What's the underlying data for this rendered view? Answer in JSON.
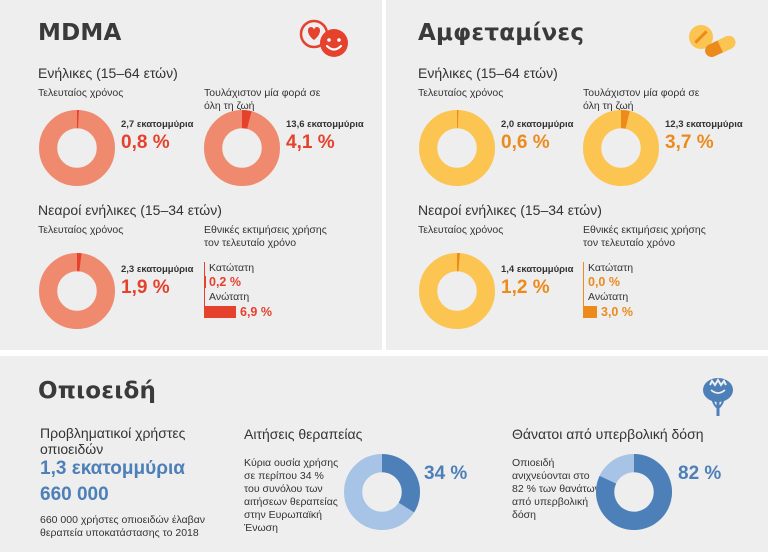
{
  "colors": {
    "mdma_ring": "#ef8a6f",
    "mdma_slice": "#e5412d",
    "amph_ring": "#fcc451",
    "amph_slice": "#ec8a1c",
    "opi_ring": "#a7c4e6",
    "opi_slice": "#4d7fb8",
    "panel_bg": "#eeeeee"
  },
  "mdma": {
    "title": "MDMA",
    "icon": "smiley-hearts-icon",
    "adults_heading": "Ενήλικες (15–64 ετών)",
    "young_heading": "Νεαροί ενήλικες (15–34 ετών)",
    "last_year_label": "Τελευταίος χρόνος",
    "lifetime_label": "Τουλάχιστον μία φορά σε όλη τη ζωή",
    "national_label": "Εθνικές εκτιμήσεις χρήσης τον τελευταίο χρόνο",
    "adults_last_year": {
      "millions": "2,7 εκατομμύρια",
      "percent": "0,8 %",
      "value": 0.8
    },
    "adults_lifetime": {
      "millions": "13,6 εκατομμύρια",
      "percent": "4,1 %",
      "value": 4.1
    },
    "young_last_year": {
      "millions": "2,3 εκατομμύρια",
      "percent": "1,9 %",
      "value": 1.9
    },
    "range": {
      "low_label": "Κατώτατη",
      "low": "0,2 %",
      "low_value": 0.2,
      "high_label": "Ανώτατη",
      "high": "6,9 %",
      "high_value": 6.9
    }
  },
  "amph": {
    "title": "Αμφεταμίνες",
    "icon": "pill-icon",
    "adults_heading": "Ενήλικες (15–64 ετών)",
    "young_heading": "Νεαροί ενήλικες (15–34 ετών)",
    "last_year_label": "Τελευταίος χρόνος",
    "lifetime_label": "Τουλάχιστον μία φορά σε όλη τη ζωή",
    "national_label": "Εθνικές εκτιμήσεις χρήσης τον τελευταίο χρόνο",
    "adults_last_year": {
      "millions": "2,0 εκατομμύρια",
      "percent": "0,6 %",
      "value": 0.6
    },
    "adults_lifetime": {
      "millions": "12,3 εκατομμύρια",
      "percent": "3,7 %",
      "value": 3.7
    },
    "young_last_year": {
      "millions": "1,4 εκατομμύρια",
      "percent": "1,2 %",
      "value": 1.2
    },
    "range": {
      "low_label": "Κατώτατη",
      "low": "0,0 %",
      "low_value": 0.0,
      "high_label": "Ανώτατη",
      "high": "3,0 %",
      "high_value": 3.0
    }
  },
  "opioids": {
    "title": "Οπιοειδή",
    "icon": "poppy-icon",
    "problem_users_label": "Προβληματικοί χρήστες οπιοειδών",
    "problem_users": "1,3 εκατομμύρια",
    "treated": "660 000",
    "treated_note": "660 000 χρήστες οπιοειδών έλαβαν θεραπεία υποκατάστασης το 2018",
    "treatment_heading": "Αιτήσεις θεραπείας",
    "treatment_text": "Κύρια ουσία χρήσης σε περίπου 34 % του συνόλου των αιτήσεων θεραπείας στην Ευρωπαϊκή Ένωση",
    "treatment_percent": "34 %",
    "treatment_value": 34,
    "deaths_heading": "Θάνατοι από υπερβολική δόση",
    "deaths_text": "Οπιοειδή ανιχνεύονται στο 82 % των θανάτων από υπερβολική δόση",
    "deaths_percent": "82 %",
    "deaths_value": 82
  },
  "chart_data": [
    {
      "type": "pie",
      "title": "MDMA",
      "series": [
        {
          "name": "Ενήλικες (15–64 ετών) — Τελευταίος χρόνος",
          "values": [
            0.8
          ]
        },
        {
          "name": "Ενήλικες (15–64 ετών) — Τουλάχιστον μία φορά σε όλη τη ζωή",
          "values": [
            4.1
          ]
        },
        {
          "name": "Νεαροί ενήλικες (15–34 ετών) — Τελευταίος χρόνος",
          "values": [
            1.9
          ]
        }
      ]
    },
    {
      "type": "bar",
      "title": "",
      "categories": [
        "Κατώτατη",
        "Ανώτατη"
      ],
      "values": [
        0.2,
        6.9
      ]
    },
    {
      "type": "pie",
      "title": "Αμφεταμίνες",
      "series": [
        {
          "name": "Ενήλικες (15–64 ετών) — Τελευταίος χρόνος",
          "values": [
            0.6
          ]
        },
        {
          "name": "Ενήλικες (15–64 ετών) — Τουλάχιστον μία φορά σε όλη τη ζωή",
          "values": [
            3.7
          ]
        },
        {
          "name": "Νεαροί ενήλικες (15–34 ετών) — Τελευταίος χρόνος",
          "values": [
            1.2
          ]
        }
      ]
    },
    {
      "type": "bar",
      "title": "",
      "categories": [
        "Κατώτατη",
        "Ανώτατη"
      ],
      "values": [
        0.0,
        3.0
      ]
    },
    {
      "type": "pie",
      "title": "Οπιοειδή",
      "series": [
        {
          "name": "Αιτήσεις θεραπείας",
          "values": [
            34
          ]
        },
        {
          "name": "Θάνατοι από υπερβολική δόση",
          "values": [
            82
          ]
        }
      ]
    }
  ]
}
